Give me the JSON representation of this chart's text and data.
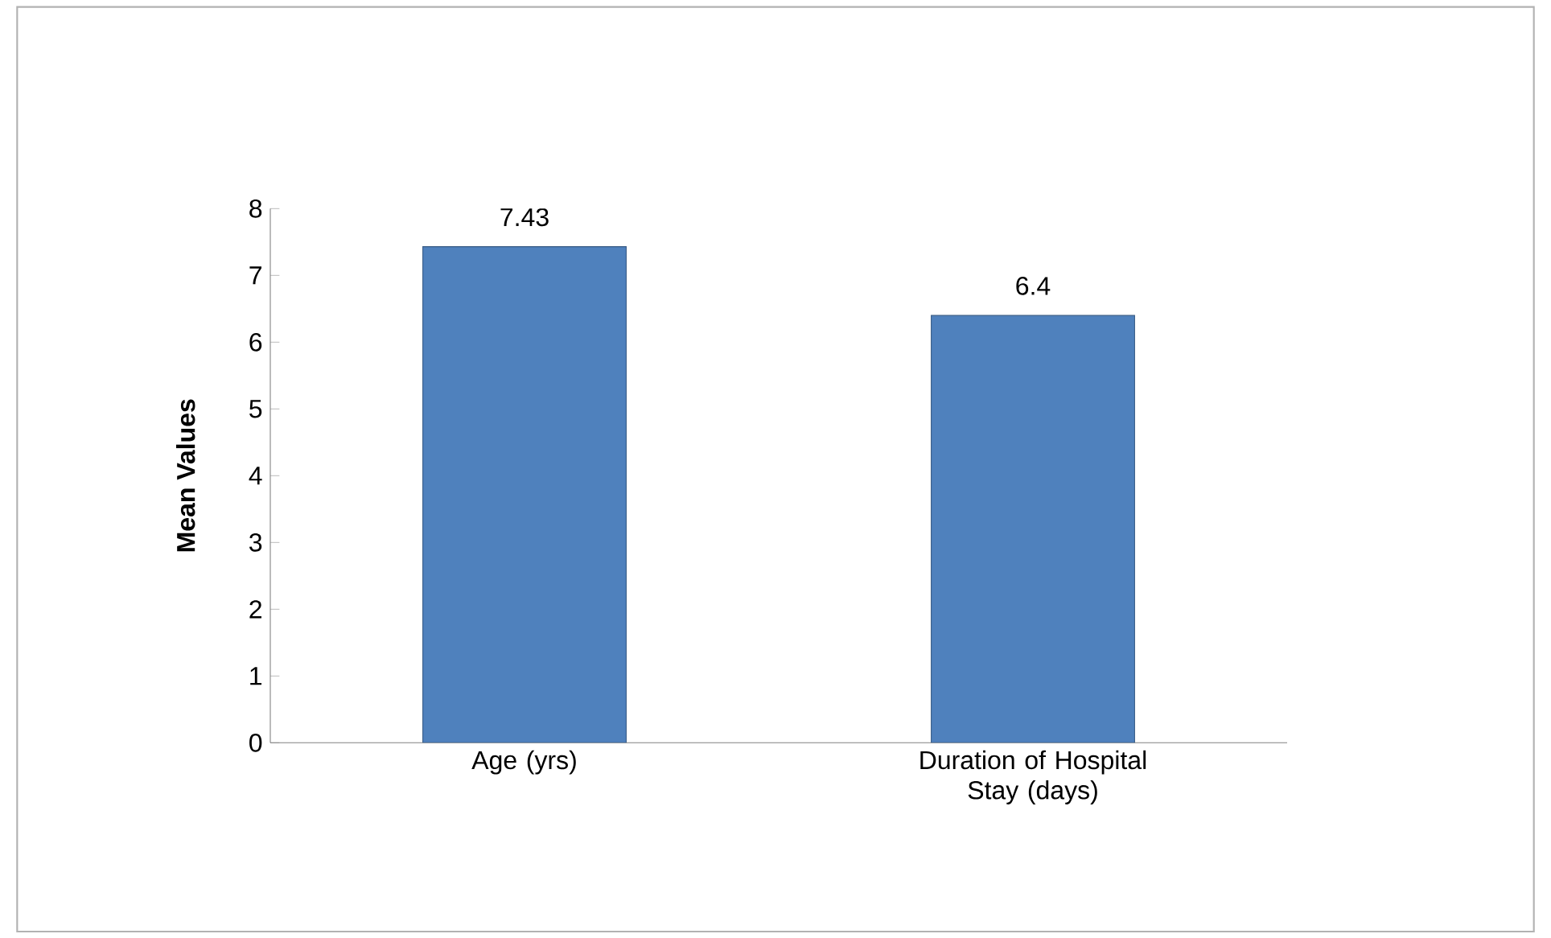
{
  "chart_data": {
    "type": "bar",
    "categories": [
      "Age (yrs)",
      "Duration of Hospital Stay (days)"
    ],
    "values": [
      7.43,
      6.4
    ],
    "color": "#4f81bd",
    "ylabel": "Mean Values",
    "ylim": [
      0,
      8
    ],
    "yticks": [
      0,
      1,
      2,
      3,
      4,
      5,
      6,
      7,
      8
    ],
    "data_labels": true,
    "grid": false
  }
}
